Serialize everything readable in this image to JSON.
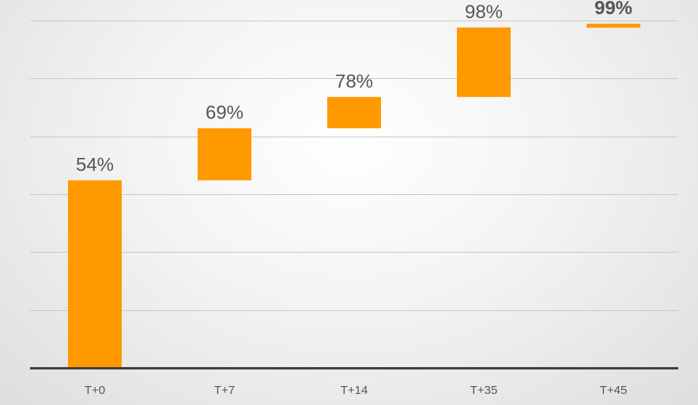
{
  "chart_data": {
    "type": "bar",
    "subtype": "waterfall",
    "title": "",
    "xlabel": "",
    "ylabel": "",
    "categories": [
      "T+0",
      "T+7",
      "T+14",
      "T+35",
      "T+45"
    ],
    "values": [
      54,
      69,
      78,
      98,
      99
    ],
    "data_labels": [
      "54%",
      "69%",
      "78%",
      "98%",
      "99%"
    ],
    "emphasized_label_index": 4,
    "ylim": [
      0,
      100
    ],
    "y_ticks_shown": false,
    "grid": true,
    "legend": "none",
    "colors": {
      "bar": "#FF9900",
      "axis": "#404040",
      "grid": "#c8c8c8",
      "text": "#555555"
    }
  }
}
